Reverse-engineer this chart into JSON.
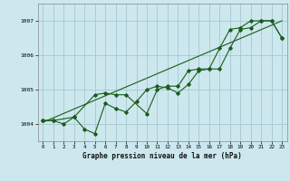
{
  "title": "Graphe pression niveau de la mer (hPa)",
  "bg_color": "#cce8ee",
  "grid_color": "#aaccd4",
  "line_color": "#1a5c1a",
  "xlim": [
    -0.5,
    23.5
  ],
  "ylim": [
    1003.5,
    1007.5
  ],
  "yticks": [
    1004,
    1005,
    1006,
    1007
  ],
  "xticks": [
    0,
    1,
    2,
    3,
    4,
    5,
    6,
    7,
    8,
    9,
    10,
    11,
    12,
    13,
    14,
    15,
    16,
    17,
    18,
    19,
    20,
    21,
    22,
    23
  ],
  "line1_x": [
    0,
    1,
    2,
    3,
    4,
    5,
    6,
    7,
    8,
    9,
    10,
    11,
    12,
    13,
    14,
    15,
    16,
    17,
    18,
    19,
    20,
    21,
    22,
    23
  ],
  "line1_y": [
    1004.1,
    1004.1,
    1004.0,
    1004.2,
    1003.85,
    1003.72,
    1004.6,
    1004.45,
    1004.35,
    1004.65,
    1005.0,
    1005.1,
    1005.05,
    1004.9,
    1005.15,
    1005.55,
    1005.6,
    1005.6,
    1006.2,
    1006.75,
    1006.8,
    1007.0,
    1007.0,
    1006.5
  ],
  "line2_x": [
    0,
    1,
    3,
    5,
    6,
    7,
    8,
    10,
    11,
    12,
    13,
    14,
    15,
    16,
    17,
    18,
    19,
    20,
    21,
    22,
    23
  ],
  "line2_y": [
    1004.1,
    1004.1,
    1004.2,
    1004.85,
    1004.9,
    1004.85,
    1004.85,
    1004.3,
    1005.0,
    1005.1,
    1005.1,
    1005.55,
    1005.6,
    1005.6,
    1006.2,
    1006.75,
    1006.8,
    1007.0,
    1007.0,
    1007.0,
    1006.5
  ],
  "trend_x": [
    0,
    23
  ],
  "trend_y": [
    1004.05,
    1007.0
  ]
}
